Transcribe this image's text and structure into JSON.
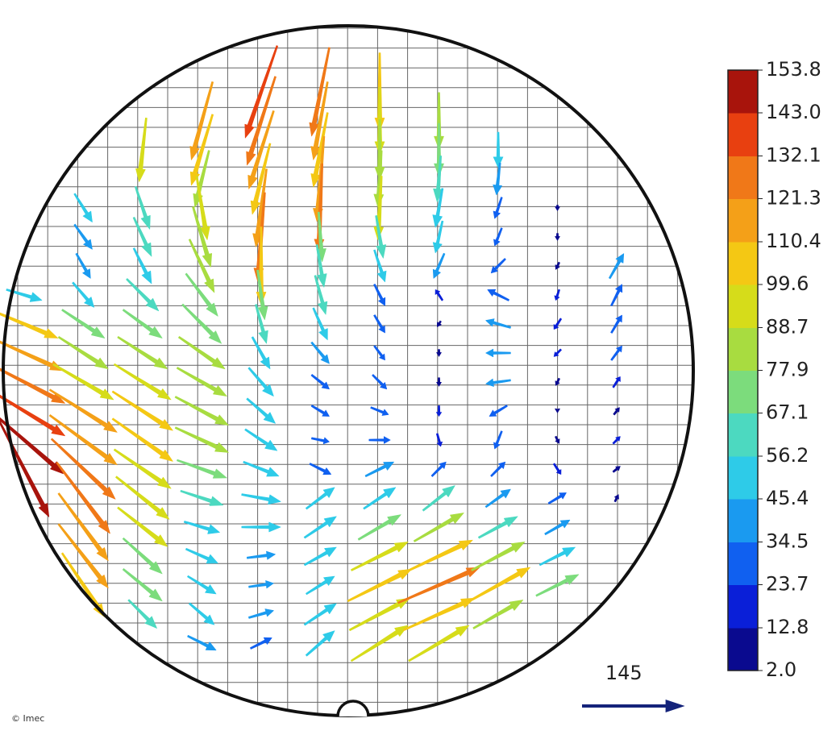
{
  "chart_data": {
    "type": "quiver",
    "credit": "© Imec",
    "reference_length": 145,
    "reference_color": "#14237a",
    "clim": [
      2,
      153.8
    ],
    "cticks": [
      {
        "value": 2,
        "label": "2.0"
      },
      12.8,
      23.7,
      34.5,
      45.4,
      56.2,
      67.1,
      77.9,
      88.7,
      99.6,
      110.4,
      121.3,
      132.1,
      {
        "value": 143,
        "label": "143.0"
      },
      153.8
    ],
    "colorbar_colors": [
      "#0a0a8f",
      "#0a1fd8",
      "#1060f0",
      "#1a9af0",
      "#2ecbe8",
      "#4cd9c0",
      "#7cdc7c",
      "#a8dc40",
      "#d6dc1a",
      "#f4c814",
      "#f4a018",
      "#f07818",
      "#e84010",
      "#a8140c"
    ],
    "grid": true,
    "x": [
      0,
      0,
      0,
      0,
      0,
      0,
      0,
      1,
      1,
      1,
      1,
      1,
      1,
      1,
      1,
      1,
      1,
      1,
      1,
      1,
      1,
      2,
      2,
      2,
      2,
      2,
      2,
      2,
      2,
      2,
      2,
      2,
      2,
      2,
      2,
      2,
      2,
      3,
      3,
      3,
      3,
      3,
      3,
      3,
      3,
      3,
      3,
      3,
      3,
      3,
      3,
      3,
      3,
      3,
      3,
      3,
      4,
      4,
      4,
      4,
      4,
      4,
      4,
      4,
      4,
      4,
      4,
      4,
      4,
      4,
      4,
      4,
      4,
      4,
      4,
      4,
      5,
      5,
      5,
      5,
      5,
      5,
      5,
      5,
      5,
      5,
      5,
      5,
      5,
      5,
      5,
      5,
      5,
      5,
      5,
      5,
      6,
      6,
      6,
      6,
      6,
      6,
      6,
      6,
      6,
      6,
      6,
      6,
      6,
      6,
      6,
      6,
      6,
      6,
      6,
      6,
      7,
      7,
      7,
      7,
      7,
      7,
      7,
      7,
      7,
      7,
      7,
      7,
      7,
      7,
      7,
      7,
      7,
      7,
      7,
      8,
      8,
      8,
      8,
      8,
      8,
      8,
      8,
      8,
      8,
      8,
      8,
      8,
      8,
      8,
      8,
      8,
      9,
      9,
      9,
      9,
      9,
      9,
      9,
      9,
      9,
      9,
      9,
      9,
      9,
      9,
      10,
      10,
      10,
      10,
      10,
      10,
      10,
      10,
      10
    ],
    "y": [
      7,
      8,
      9,
      10,
      11,
      12,
      13,
      4,
      5,
      6,
      7,
      8,
      9,
      10,
      11,
      12,
      13,
      14,
      15,
      16,
      17,
      2,
      4,
      5,
      6,
      7,
      8,
      9,
      10,
      11,
      12,
      13,
      14,
      15,
      16,
      17,
      18,
      1,
      2,
      3,
      4,
      5,
      6,
      7,
      8,
      9,
      10,
      11,
      12,
      13,
      14,
      15,
      16,
      17,
      18,
      19,
      0,
      1,
      2,
      3,
      4,
      5,
      6,
      7,
      8,
      9,
      10,
      11,
      12,
      13,
      14,
      15,
      16,
      17,
      18,
      19,
      0,
      1,
      2,
      3,
      4,
      5,
      6,
      7,
      8,
      9,
      10,
      11,
      12,
      13,
      14,
      15,
      16,
      17,
      18,
      19,
      0,
      1,
      2,
      3,
      4,
      5,
      6,
      7,
      8,
      9,
      10,
      11,
      12,
      13,
      14,
      15,
      16,
      17,
      18,
      19,
      1,
      2,
      3,
      4,
      5,
      6,
      7,
      8,
      9,
      10,
      11,
      12,
      13,
      14,
      15,
      16,
      17,
      18,
      19,
      2,
      3,
      4,
      5,
      6,
      7,
      8,
      9,
      10,
      11,
      12,
      13,
      14,
      15,
      16,
      17,
      18,
      4,
      5,
      6,
      7,
      8,
      9,
      10,
      11,
      12,
      13,
      14,
      15,
      16,
      17,
      6,
      7,
      8,
      9,
      10,
      11,
      12,
      13,
      14
    ],
    "u": [
      50,
      95,
      110,
      115,
      115,
      110,
      70,
      25,
      25,
      20,
      30,
      60,
      70,
      85,
      95,
      95,
      90,
      75,
      70,
      70,
      60,
      -10,
      20,
      25,
      25,
      45,
      55,
      70,
      80,
      85,
      85,
      80,
      75,
      70,
      55,
      55,
      40,
      -30,
      -30,
      -20,
      15,
      25,
      35,
      45,
      55,
      65,
      70,
      75,
      75,
      70,
      60,
      50,
      45,
      40,
      35,
      40,
      -45,
      -40,
      -35,
      -25,
      -15,
      -10,
      0,
      10,
      15,
      25,
      35,
      40,
      45,
      50,
      55,
      55,
      40,
      35,
      35,
      30,
      -25,
      -20,
      -20,
      -10,
      -5,
      5,
      10,
      15,
      20,
      25,
      25,
      25,
      25,
      30,
      40,
      45,
      45,
      40,
      45,
      40,
      0,
      0,
      0,
      -5,
      -5,
      10,
      15,
      15,
      15,
      15,
      20,
      25,
      30,
      40,
      45,
      60,
      80,
      90,
      85,
      80,
      0,
      0,
      -5,
      -10,
      -10,
      -15,
      -10,
      -5,
      0,
      0,
      0,
      5,
      20,
      45,
      70,
      95,
      115,
      100,
      85,
      0,
      -5,
      -10,
      -10,
      -20,
      -30,
      -35,
      -35,
      -35,
      -25,
      -10,
      20,
      35,
      55,
      75,
      90,
      70,
      0,
      0,
      -5,
      -5,
      -10,
      -10,
      -5,
      0,
      5,
      10,
      25,
      35,
      50,
      60,
      20,
      15,
      15,
      15,
      10,
      8,
      10,
      10,
      5
    ],
    "v": [
      -15,
      -40,
      -50,
      -60,
      -70,
      -95,
      -135,
      -40,
      -35,
      -35,
      -35,
      -40,
      -45,
      -50,
      -60,
      -70,
      -85,
      -100,
      -95,
      -90,
      -90,
      -90,
      -60,
      -55,
      -50,
      -45,
      -40,
      -45,
      -50,
      -55,
      -60,
      -55,
      -60,
      -55,
      -50,
      -45,
      -40,
      -110,
      -100,
      -80,
      -90,
      -85,
      -75,
      -60,
      -55,
      -45,
      -40,
      -40,
      -35,
      -25,
      -20,
      -15,
      -20,
      -25,
      -30,
      -20,
      -130,
      -125,
      -110,
      -100,
      -110,
      -125,
      -110,
      -70,
      -55,
      -45,
      -40,
      -35,
      -30,
      -20,
      -10,
      0,
      5,
      5,
      10,
      15,
      -125,
      -110,
      -105,
      -120,
      -125,
      -70,
      -60,
      -55,
      -45,
      -30,
      -20,
      -15,
      -5,
      -15,
      30,
      30,
      25,
      25,
      30,
      35,
      -110,
      -95,
      -85,
      -80,
      -90,
      -60,
      -45,
      -30,
      -25,
      -20,
      -20,
      -10,
      0,
      20,
      30,
      35,
      40,
      45,
      45,
      50,
      -80,
      -75,
      -65,
      -55,
      -45,
      -35,
      15,
      -8,
      -10,
      -12,
      -15,
      -18,
      20,
      35,
      40,
      45,
      50,
      45,
      50,
      -50,
      -45,
      -30,
      -25,
      -20,
      15,
      10,
      0,
      -5,
      -15,
      -25,
      20,
      25,
      30,
      40,
      50,
      40,
      -8,
      -10,
      -10,
      -15,
      -15,
      -10,
      -10,
      -5,
      -10,
      -15,
      15,
      20,
      25,
      30,
      35,
      30,
      25,
      20,
      15,
      10,
      10,
      8,
      10
    ]
  }
}
